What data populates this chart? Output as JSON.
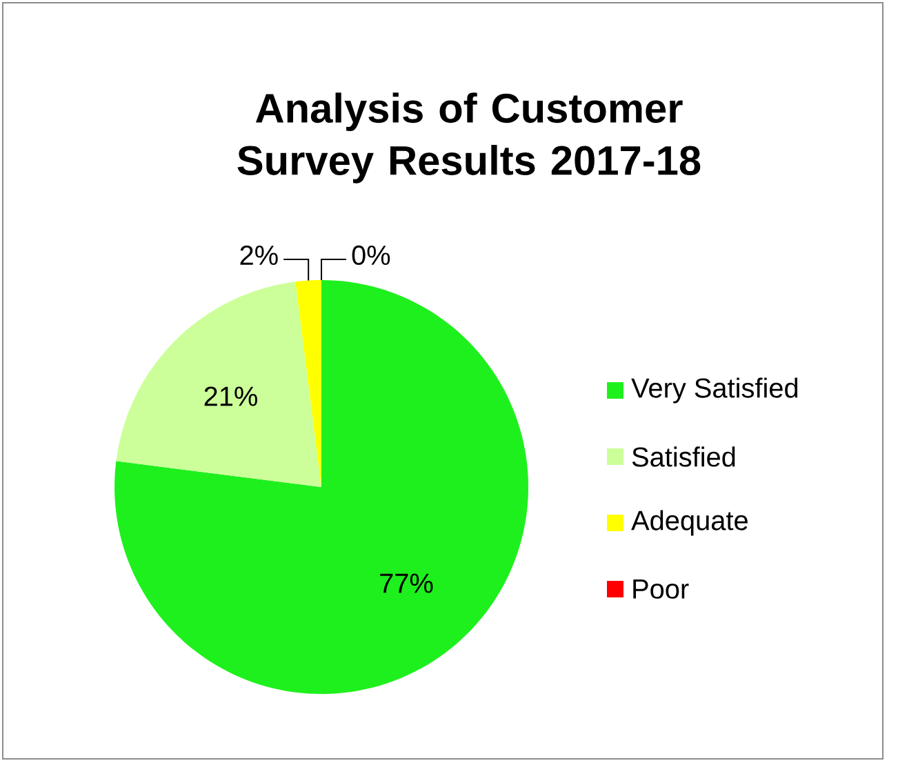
{
  "chart_data": {
    "type": "pie",
    "title": "Analysis of Customer Survey Results 2017-18",
    "categories": [
      "Very Satisfied",
      "Satisfied",
      "Adequate",
      "Poor"
    ],
    "values": [
      77,
      21,
      2,
      0
    ],
    "colors": [
      "#1ef01e",
      "#ccff99",
      "#ffff00",
      "#ff0000"
    ],
    "value_labels": [
      "77%",
      "21%",
      "2%",
      "0%"
    ],
    "legend": "right"
  }
}
